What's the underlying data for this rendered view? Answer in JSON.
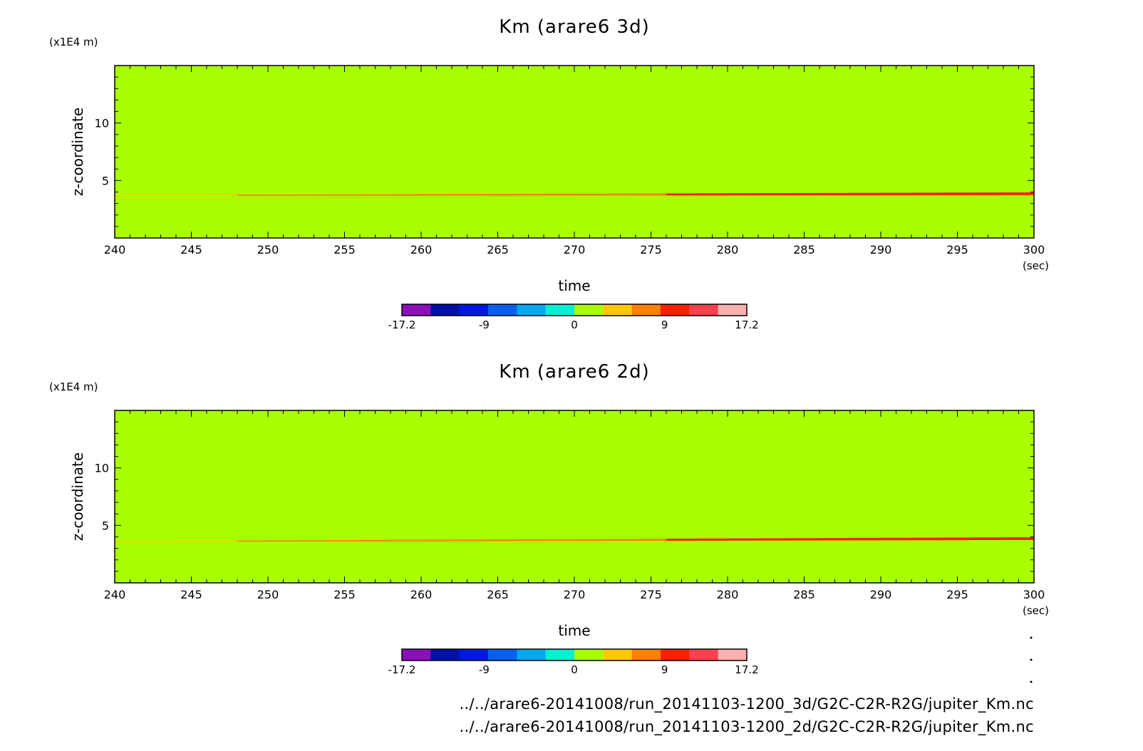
{
  "chart_data": [
    {
      "type": "heatmap",
      "title": "Km (arare6 3d)",
      "xlabel": "time",
      "x_unit": "(sec)",
      "ylabel": "z-coordinate",
      "y_unit": "(x1E4 m)",
      "xlim": [
        240,
        300
      ],
      "ylim": [
        0,
        15
      ],
      "x_ticks": [
        "240",
        "245",
        "250",
        "255",
        "260",
        "265",
        "270",
        "275",
        "280",
        "285",
        "290",
        "295",
        "300"
      ],
      "y_ticks": [
        "5",
        "10"
      ],
      "background_value": 1,
      "feature": {
        "description_value": "positive band",
        "z_start": 3.7,
        "z_end": 3.85,
        "value_start": 5,
        "value_end": 11
      },
      "colorbar": {
        "min": -17.2,
        "max": 17.2,
        "tick_labels": [
          "-17.2",
          "-9",
          "0",
          "9",
          "17.2"
        ],
        "colors": [
          "#8b10b8",
          "#0010a8",
          "#0018e0",
          "#0860f0",
          "#00a8f0",
          "#00f0d0",
          "#a8ff00",
          "#ffc800",
          "#ff8000",
          "#ff2000",
          "#ff4050",
          "#ffb0b0"
        ]
      }
    },
    {
      "type": "heatmap",
      "title": "Km (arare6 2d)",
      "xlabel": "time",
      "x_unit": "(sec)",
      "ylabel": "z-coordinate",
      "y_unit": "(x1E4 m)",
      "xlim": [
        240,
        300
      ],
      "ylim": [
        0,
        15
      ],
      "x_ticks": [
        "240",
        "245",
        "250",
        "255",
        "260",
        "265",
        "270",
        "275",
        "280",
        "285",
        "290",
        "295",
        "300"
      ],
      "y_ticks": [
        "5",
        "10"
      ],
      "background_value": 1,
      "feature": {
        "z_start": 3.6,
        "z_end": 3.85,
        "value_start": 5,
        "value_end": 11
      },
      "colorbar": {
        "min": -17.2,
        "max": 17.2,
        "tick_labels": [
          "-17.2",
          "-9",
          "0",
          "9",
          "17.2"
        ],
        "colors": [
          "#8b10b8",
          "#0010a8",
          "#0018e0",
          "#0860f0",
          "#00a8f0",
          "#00f0d0",
          "#a8ff00",
          "#ffc800",
          "#ff8000",
          "#ff2000",
          "#ff4050",
          "#ffb0b0"
        ]
      }
    }
  ],
  "footer": {
    "line1": "../../arare6-20141008/run_20141103-1200_3d/G2C-C2R-R2G/jupiter_Km.nc",
    "line2": "../../arare6-20141008/run_20141103-1200_2d/G2C-C2R-R2G/jupiter_Km.nc"
  }
}
